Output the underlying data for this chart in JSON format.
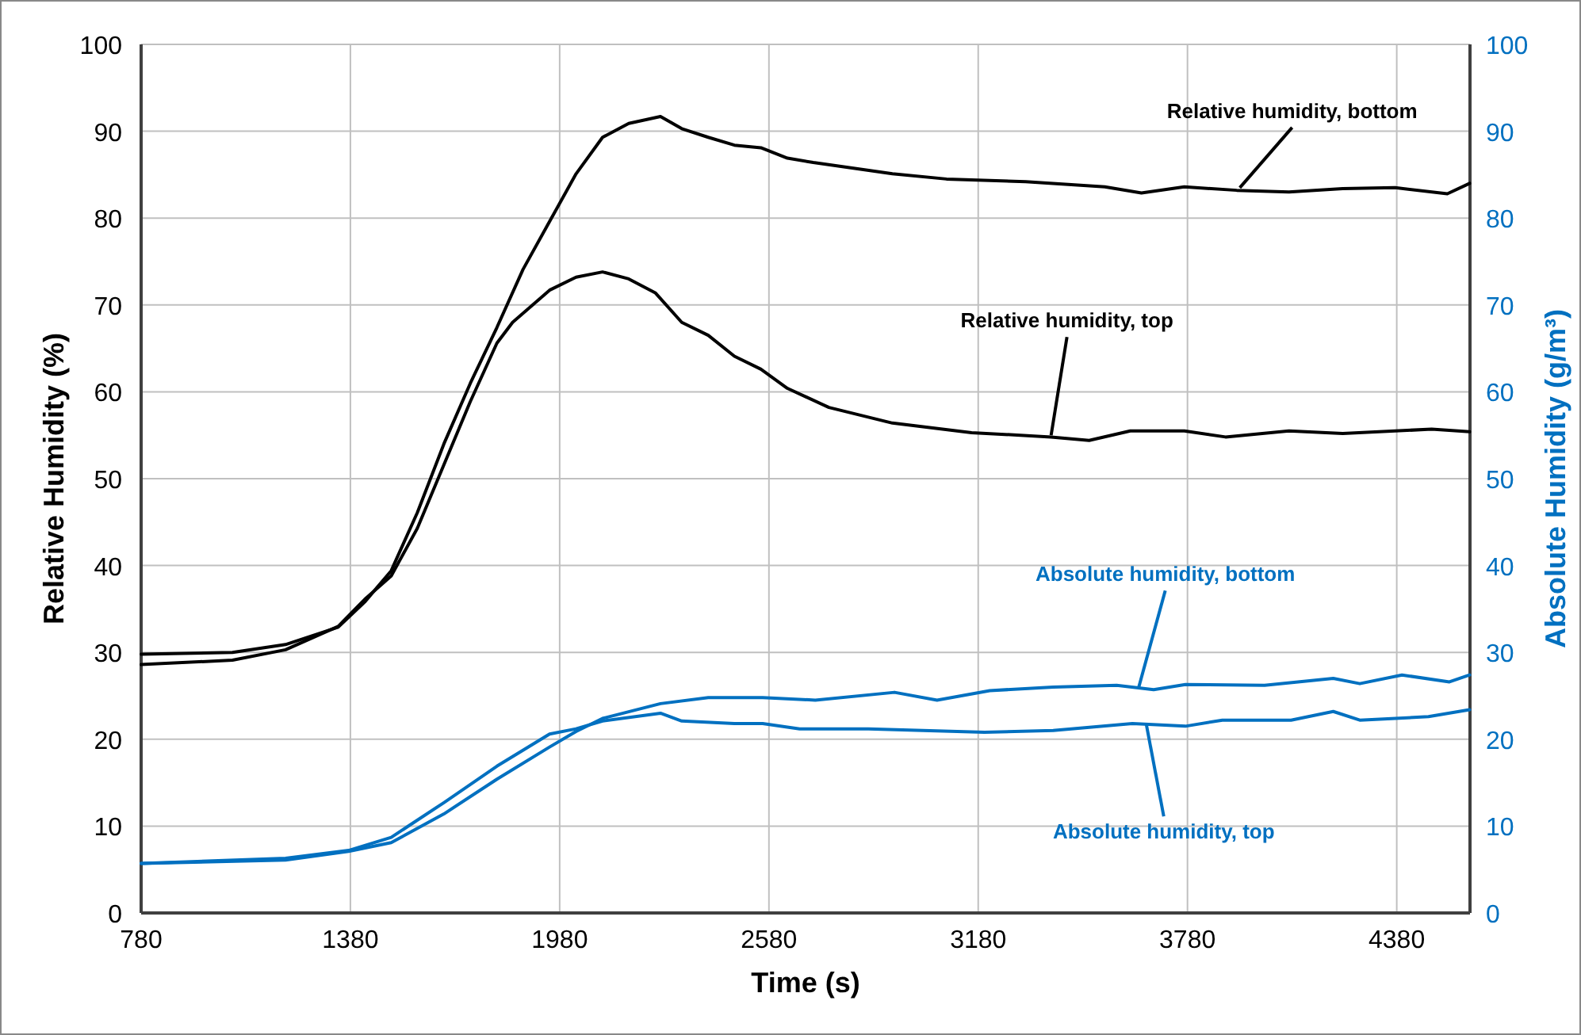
{
  "chart_data": {
    "type": "line",
    "xlabel": "Time (s)",
    "ylabel": "Relative Humidity (%)",
    "y2label": "Absolute Humidity (g/m³)",
    "xlim": [
      780,
      4590
    ],
    "xticks": [
      780,
      1380,
      1980,
      2580,
      3180,
      3780,
      4380
    ],
    "ylim": [
      0,
      100
    ],
    "yticks": [
      0,
      10,
      20,
      30,
      40,
      50,
      60,
      70,
      80,
      90,
      100
    ],
    "y2lim": [
      0,
      100
    ],
    "y2ticks": [
      0,
      10,
      20,
      30,
      40,
      50,
      60,
      70,
      80,
      90,
      100
    ],
    "grid": true,
    "line_style": "solid",
    "marker": "none",
    "series": [
      {
        "color": "#000000",
        "x": [
          780,
          1042,
          1194,
          1345,
          1421,
          1497,
          1572,
          1648,
          1724,
          1800,
          1875,
          1951,
          2027,
          2103,
          2178,
          2269,
          2330,
          2406,
          2481,
          2557,
          2633,
          2707,
          2934,
          3089,
          3316,
          3543,
          3648,
          3771,
          3921,
          4071,
          4225,
          4375,
          4525,
          4589
        ],
        "values": [
          29.8,
          30.0,
          30.9,
          32.9,
          35.8,
          39.4,
          46.1,
          54.0,
          61.0,
          67.4,
          74.1,
          79.6,
          85.1,
          89.3,
          90.9,
          91.7,
          90.3,
          89.3,
          88.4,
          88.1,
          86.9,
          86.4,
          85.1,
          84.5,
          84.2,
          83.6,
          82.9,
          83.6,
          83.2,
          83.0,
          83.4,
          83.5,
          82.8,
          84.0
        ]
      },
      {
        "color": "#000000",
        "x": [
          780,
          1042,
          1194,
          1345,
          1421,
          1497,
          1572,
          1648,
          1724,
          1800,
          1845,
          1951,
          2027,
          2103,
          2178,
          2254,
          2330,
          2406,
          2481,
          2557,
          2633,
          2752,
          2934,
          3161,
          3389,
          3498,
          3616,
          3771,
          3889,
          4071,
          4225,
          4480,
          4589
        ],
        "values": [
          28.6,
          29.1,
          30.3,
          33.0,
          36.1,
          38.8,
          44.3,
          51.6,
          58.9,
          65.6,
          68.0,
          71.7,
          73.2,
          73.8,
          73.0,
          71.4,
          68.0,
          66.5,
          64.1,
          62.6,
          60.4,
          58.2,
          56.4,
          55.3,
          54.8,
          54.4,
          55.5,
          55.5,
          54.8,
          55.5,
          55.2,
          55.7,
          55.4
        ]
      },
      {
        "color": "#0070c0",
        "axis": "y2",
        "x": [
          780,
          1194,
          1375,
          1497,
          1648,
          1800,
          1951,
          2027,
          2103,
          2269,
          2406,
          2562,
          2713,
          2940,
          3062,
          3213,
          3395,
          3577,
          3683,
          3774,
          4001,
          4198,
          4274,
          4395,
          4531,
          4589
        ],
        "values": [
          5.7,
          6.1,
          7.1,
          8.1,
          11.4,
          15.4,
          19.1,
          20.9,
          22.4,
          24.1,
          24.8,
          24.8,
          24.5,
          25.4,
          24.5,
          25.6,
          26.0,
          26.2,
          25.7,
          26.3,
          26.2,
          27.0,
          26.4,
          27.4,
          26.6,
          27.4
        ]
      },
      {
        "color": "#0070c0",
        "axis": "y2",
        "x": [
          780,
          1194,
          1375,
          1497,
          1648,
          1800,
          1951,
          2027,
          2103,
          2269,
          2330,
          2481,
          2562,
          2668,
          2865,
          3198,
          3395,
          3622,
          3774,
          3880,
          4077,
          4198,
          4274,
          4471,
          4589
        ],
        "values": [
          5.7,
          6.3,
          7.2,
          8.7,
          12.7,
          16.9,
          20.6,
          21.2,
          22.1,
          23.0,
          22.1,
          21.8,
          21.8,
          21.2,
          21.2,
          20.8,
          21.0,
          21.8,
          21.5,
          22.2,
          22.2,
          23.2,
          22.2,
          22.6,
          23.4
        ]
      }
    ],
    "annotations": [
      {
        "text": "Relative humidity, bottom",
        "x": 3930,
        "y": 83.5
      },
      {
        "text": "Relative humidity, top",
        "x": 3389,
        "y": 55.0
      },
      {
        "text": "Absolute humidity, bottom",
        "x": 3639,
        "y": 25.8
      },
      {
        "text": "Absolute humidity, top",
        "x": 3662,
        "y": 21.7
      }
    ]
  }
}
